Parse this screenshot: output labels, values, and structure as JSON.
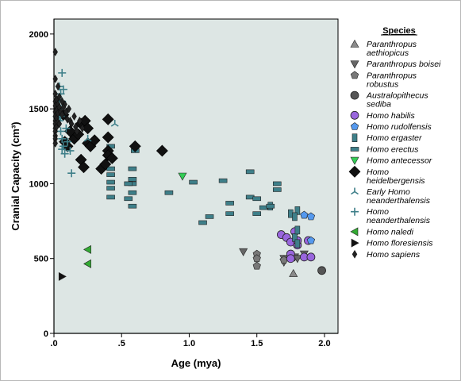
{
  "chart_data": {
    "type": "scatter",
    "title": "",
    "xlabel": "Age (mya)",
    "ylabel": "Cranial Capacity (cm³)",
    "xlim": [
      0,
      2.1
    ],
    "ylim": [
      0,
      2100
    ],
    "xticks": [
      0,
      0.5,
      1.0,
      1.5,
      2.0
    ],
    "xtick_labels": [
      ".0",
      ".5",
      "1.0",
      "1.5",
      "2.0"
    ],
    "yticks": [
      0,
      500,
      1000,
      1500,
      2000
    ],
    "ytick_labels": [
      "0",
      "500",
      "1000",
      "1500",
      "2000"
    ],
    "grid": false,
    "background": "#dde6e4",
    "legend_title": "Species",
    "legend_position": "right",
    "series": [
      {
        "name": "Paranthropus aethiopicus",
        "label_lines": [
          "Paranthropus",
          "aethiopicus"
        ],
        "marker": "triangle-up",
        "color": "#8a8a8a",
        "points": [
          [
            1.77,
            400
          ]
        ]
      },
      {
        "name": "Paranthropus boisei",
        "label_lines": [
          "Paranthropus boisei"
        ],
        "marker": "triangle-down",
        "color": "#666666",
        "points": [
          [
            1.4,
            545
          ],
          [
            1.7,
            500
          ],
          [
            1.7,
            475
          ],
          [
            1.75,
            520
          ],
          [
            1.78,
            510
          ],
          [
            1.8,
            500
          ],
          [
            1.85,
            530
          ]
        ]
      },
      {
        "name": "Paranthropus robustus",
        "label_lines": [
          "Paranthropus",
          "robustus"
        ],
        "marker": "pentagon",
        "color": "#787878",
        "points": [
          [
            1.5,
            530
          ],
          [
            1.5,
            500
          ],
          [
            1.5,
            450
          ],
          [
            1.7,
            490
          ]
        ]
      },
      {
        "name": "Australopithecus sediba",
        "label_lines": [
          "Australopithecus",
          "sediba"
        ],
        "marker": "circle",
        "color": "#555555",
        "points": [
          [
            1.98,
            420
          ]
        ]
      },
      {
        "name": "Homo habilis",
        "label_lines": [
          "Homo habilis"
        ],
        "marker": "circle",
        "color": "#9966dd",
        "points": [
          [
            1.68,
            660
          ],
          [
            1.72,
            640
          ],
          [
            1.75,
            610
          ],
          [
            1.75,
            530
          ],
          [
            1.75,
            500
          ],
          [
            1.78,
            680
          ],
          [
            1.8,
            590
          ],
          [
            1.85,
            510
          ],
          [
            1.9,
            510
          ],
          [
            1.88,
            620
          ],
          [
            1.8,
            620
          ]
        ]
      },
      {
        "name": "Homo rudolfensis",
        "label_lines": [
          "Homo rudolfensis"
        ],
        "marker": "pentagon",
        "color": "#5599ee",
        "points": [
          [
            1.85,
            790
          ],
          [
            1.9,
            780
          ],
          [
            1.9,
            620
          ]
        ]
      },
      {
        "name": "Homo ergaster",
        "label_lines": [
          "Homo ergaster"
        ],
        "marker": "rect-v",
        "color": "#3e7f89",
        "points": [
          [
            1.6,
            850
          ],
          [
            1.75,
            800
          ],
          [
            1.8,
            820
          ],
          [
            1.78,
            780
          ],
          [
            1.78,
            640
          ],
          [
            1.8,
            600
          ],
          [
            1.8,
            690
          ]
        ]
      },
      {
        "name": "Homo erectus",
        "label_lines": [
          "Homo erectus"
        ],
        "marker": "rect-h",
        "color": "#3e7f89",
        "points": [
          [
            0.42,
            1250
          ],
          [
            0.42,
            1170
          ],
          [
            0.42,
            1100
          ],
          [
            0.42,
            1060
          ],
          [
            0.42,
            1010
          ],
          [
            0.42,
            970
          ],
          [
            0.42,
            910
          ],
          [
            0.58,
            1100
          ],
          [
            0.58,
            1030
          ],
          [
            0.58,
            1000
          ],
          [
            0.58,
            940
          ],
          [
            0.58,
            850
          ],
          [
            0.55,
            1000
          ],
          [
            0.55,
            900
          ],
          [
            0.6,
            1220
          ],
          [
            0.85,
            940
          ],
          [
            1.03,
            1010
          ],
          [
            1.1,
            740
          ],
          [
            1.15,
            780
          ],
          [
            1.25,
            1020
          ],
          [
            1.3,
            870
          ],
          [
            1.3,
            800
          ],
          [
            1.45,
            1080
          ],
          [
            1.45,
            910
          ],
          [
            1.5,
            900
          ],
          [
            1.5,
            800
          ],
          [
            1.55,
            840
          ],
          [
            1.6,
            850
          ],
          [
            1.65,
            1000
          ],
          [
            1.65,
            960
          ]
        ]
      },
      {
        "name": "Homo antecessor",
        "label_lines": [
          "Homo antecessor"
        ],
        "marker": "triangle-down",
        "color": "#33cc55",
        "points": [
          [
            0.95,
            1050
          ]
        ]
      },
      {
        "name": "Homo heidelbergensis",
        "label_lines": [
          "Homo",
          "heidelbergensis"
        ],
        "marker": "diamond",
        "color": "#111111",
        "points": [
          [
            0.07,
            1460
          ],
          [
            0.08,
            1280
          ],
          [
            0.1,
            1250
          ],
          [
            0.12,
            1350
          ],
          [
            0.15,
            1300
          ],
          [
            0.18,
            1330
          ],
          [
            0.2,
            1400
          ],
          [
            0.2,
            1160
          ],
          [
            0.22,
            1110
          ],
          [
            0.23,
            1420
          ],
          [
            0.25,
            1370
          ],
          [
            0.25,
            1270
          ],
          [
            0.27,
            1250
          ],
          [
            0.3,
            1290
          ],
          [
            0.35,
            1100
          ],
          [
            0.38,
            1130
          ],
          [
            0.4,
            1430
          ],
          [
            0.4,
            1310
          ],
          [
            0.4,
            1220
          ],
          [
            0.4,
            1190
          ],
          [
            0.43,
            1170
          ],
          [
            0.6,
            1250
          ],
          [
            0.8,
            1220
          ]
        ]
      },
      {
        "name": "Early Homo neanderthalensis",
        "label_lines": [
          "Early Homo",
          "neanderthalensis"
        ],
        "marker": "tri-star",
        "color": "#3e7f89",
        "points": [
          [
            0.45,
            1400
          ],
          [
            0.02,
            1460
          ],
          [
            0.25,
            1300
          ]
        ]
      },
      {
        "name": "Homo neanderthalensis",
        "label_lines": [
          "Homo",
          "neanderthalensis"
        ],
        "marker": "plus",
        "color": "#3e7f89",
        "points": [
          [
            0.04,
            1650
          ],
          [
            0.05,
            1600
          ],
          [
            0.06,
            1740
          ],
          [
            0.05,
            1500
          ],
          [
            0.04,
            1420
          ],
          [
            0.05,
            1350
          ],
          [
            0.06,
            1300
          ],
          [
            0.07,
            1250
          ],
          [
            0.06,
            1230
          ],
          [
            0.08,
            1200
          ],
          [
            0.1,
            1280
          ],
          [
            0.12,
            1220
          ],
          [
            0.13,
            1070
          ],
          [
            0.05,
            1450
          ],
          [
            0.06,
            1550
          ],
          [
            0.09,
            1370
          ],
          [
            0.04,
            1560
          ],
          [
            0.07,
            1630
          ]
        ]
      },
      {
        "name": "Homo naledi",
        "label_lines": [
          "Homo naledi"
        ],
        "marker": "triangle-left",
        "color": "#33aa33",
        "points": [
          [
            0.25,
            560
          ],
          [
            0.25,
            465
          ]
        ]
      },
      {
        "name": "Homo floresiensis",
        "label_lines": [
          "Homo floresiensis"
        ],
        "marker": "triangle-right",
        "color": "#111111",
        "points": [
          [
            0.06,
            380
          ]
        ]
      },
      {
        "name": "Homo sapiens",
        "label_lines": [
          "Homo sapiens"
        ],
        "marker": "thin-diamond",
        "color": "#222222",
        "points": [
          [
            0.01,
            1880
          ],
          [
            0.01,
            1700
          ],
          [
            0.01,
            1600
          ],
          [
            0.01,
            1550
          ],
          [
            0.01,
            1520
          ],
          [
            0.01,
            1480
          ],
          [
            0.01,
            1450
          ],
          [
            0.01,
            1420
          ],
          [
            0.01,
            1400
          ],
          [
            0.01,
            1370
          ],
          [
            0.01,
            1350
          ],
          [
            0.01,
            1320
          ],
          [
            0.01,
            1300
          ],
          [
            0.01,
            1270
          ],
          [
            0.02,
            1560
          ],
          [
            0.02,
            1490
          ],
          [
            0.02,
            1440
          ],
          [
            0.02,
            1380
          ],
          [
            0.03,
            1530
          ],
          [
            0.03,
            1470
          ],
          [
            0.03,
            1410
          ],
          [
            0.04,
            1510
          ],
          [
            0.04,
            1400
          ],
          [
            0.05,
            1480
          ],
          [
            0.06,
            1460
          ],
          [
            0.08,
            1530
          ],
          [
            0.09,
            1480
          ],
          [
            0.1,
            1430
          ],
          [
            0.11,
            1500
          ],
          [
            0.12,
            1420
          ],
          [
            0.13,
            1400
          ],
          [
            0.15,
            1450
          ],
          [
            0.16,
            1380
          ],
          [
            0.17,
            1350
          ],
          [
            0.19,
            1420
          ],
          [
            0.21,
            1370
          ],
          [
            0.03,
            1650
          ],
          [
            0.04,
            1580
          ],
          [
            0.06,
            1550
          ],
          [
            0.07,
            1510
          ]
        ]
      }
    ]
  }
}
